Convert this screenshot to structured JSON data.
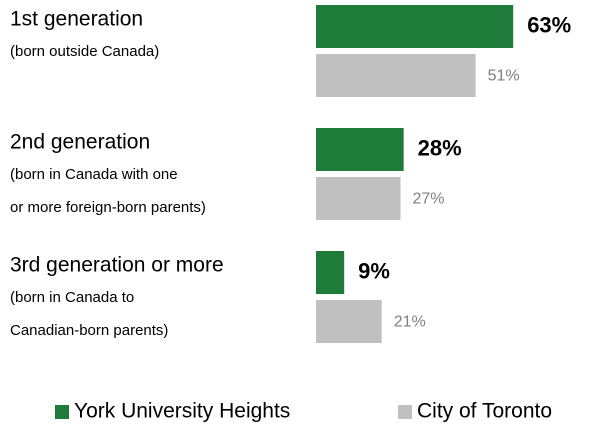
{
  "chart_data": {
    "type": "bar",
    "orientation": "horizontal",
    "categories": [
      "1st generation",
      "2nd generation",
      "3rd generation or more"
    ],
    "category_notes": [
      [
        "(born outside Canada)"
      ],
      [
        "(born in Canada with one",
        "or more foreign-born parents)"
      ],
      [
        "(born in Canada to",
        "Canadian-born parents)"
      ]
    ],
    "series": [
      {
        "name": "York University Heights",
        "color": "#1e7b3a",
        "values": [
          63,
          28,
          9
        ],
        "value_labels": [
          "63%",
          "28%",
          "9%"
        ]
      },
      {
        "name": "City of Toronto",
        "color": "#c0c0c0",
        "values": [
          51,
          27,
          21
        ],
        "value_labels": [
          "51%",
          "27%",
          "21%"
        ]
      }
    ],
    "legend": "bottom"
  }
}
